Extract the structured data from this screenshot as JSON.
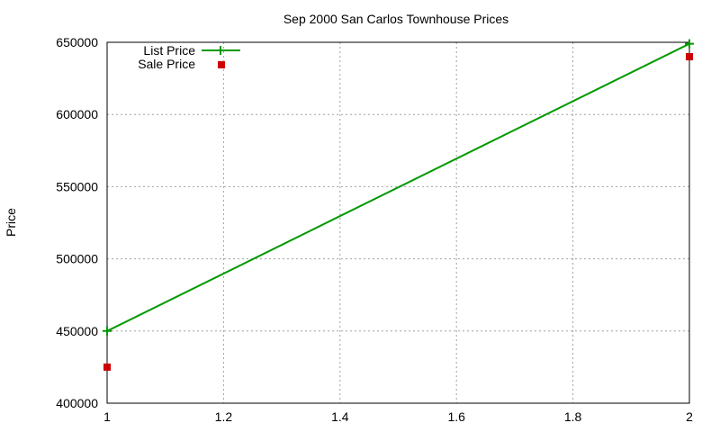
{
  "chart_data": {
    "type": "line",
    "title": "Sep 2000 San Carlos Townhouse Prices",
    "xlabel": "",
    "ylabel": "Price",
    "xlim": [
      1,
      2
    ],
    "ylim": [
      400000,
      650000
    ],
    "xticks": [
      "1",
      "1.2",
      "1.4",
      "1.6",
      "1.8",
      "2"
    ],
    "yticks": [
      "400000",
      "450000",
      "500000",
      "550000",
      "600000",
      "650000"
    ],
    "grid": true,
    "legend_position": "top-left",
    "series": [
      {
        "name": "List Price",
        "style": "linespoints",
        "color": "#009900",
        "x": [
          1,
          2
        ],
        "values": [
          450000,
          649000
        ]
      },
      {
        "name": "Sale Price",
        "style": "points",
        "color": "#cc0000",
        "x": [
          1,
          2
        ],
        "values": [
          425000,
          640000
        ]
      }
    ]
  }
}
